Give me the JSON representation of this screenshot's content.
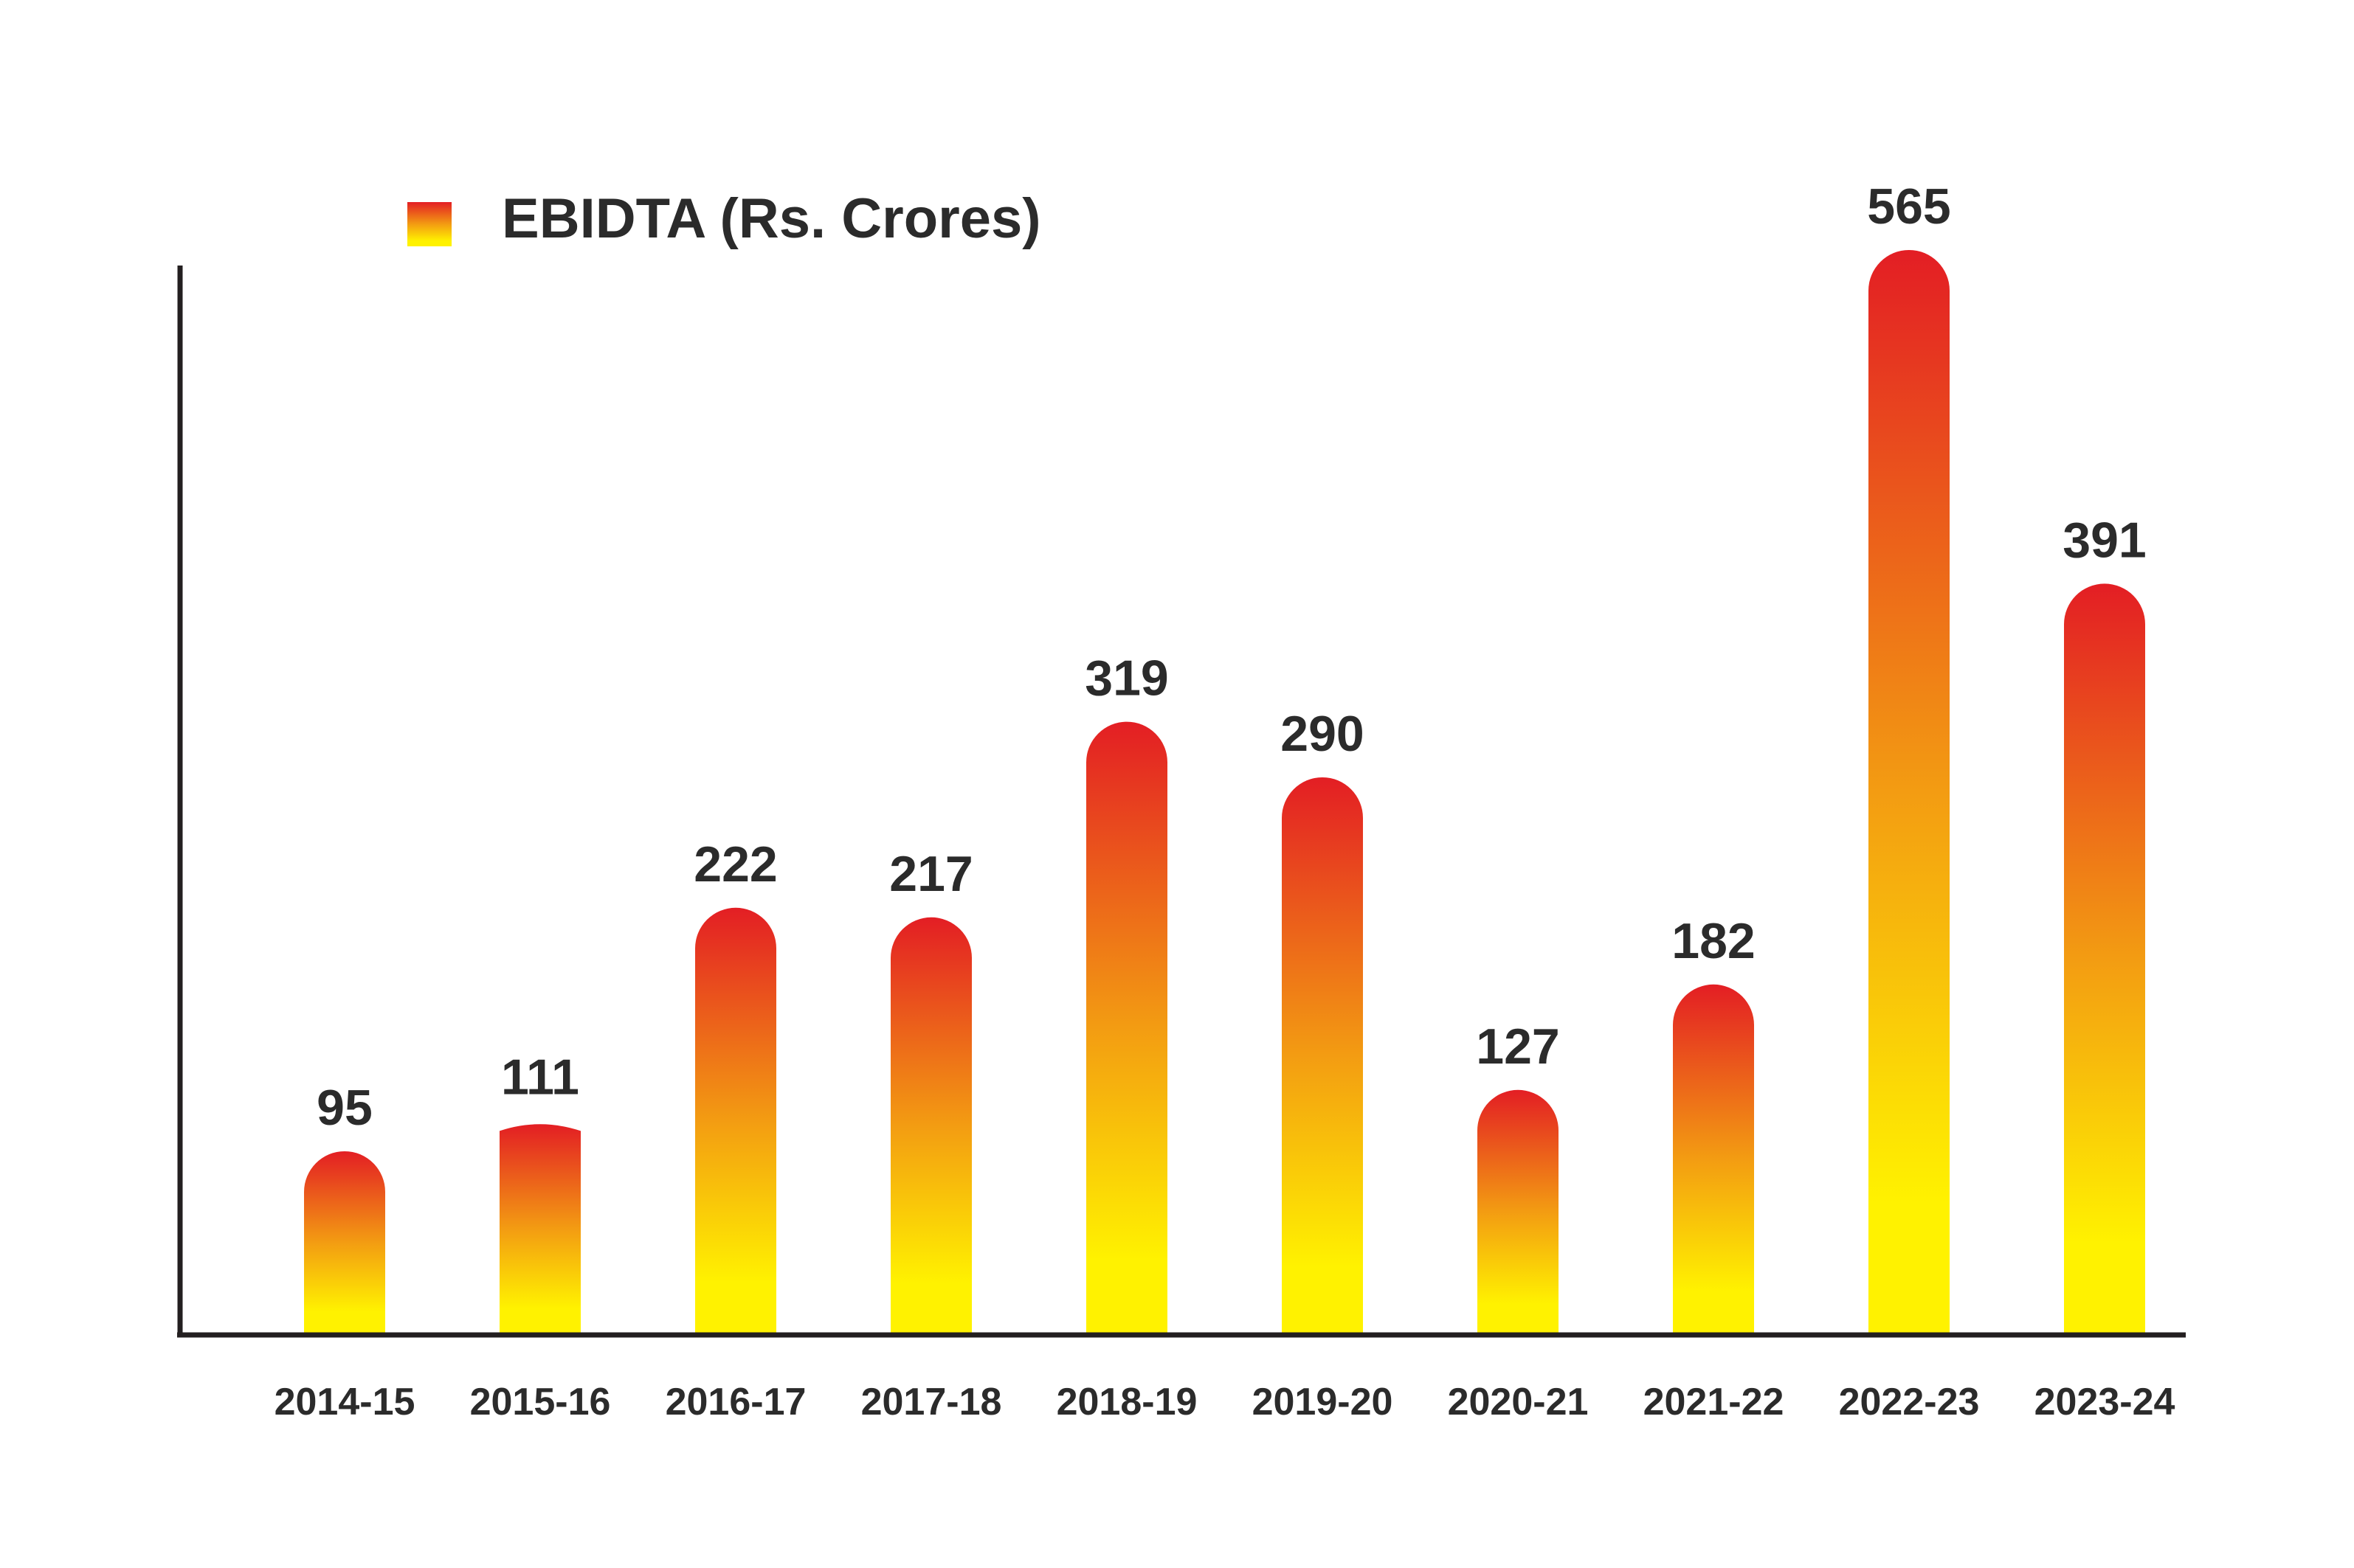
{
  "chart_data": {
    "type": "bar",
    "categories": [
      "2014-15",
      "2015-16",
      "2016-17",
      "2017-18",
      "2018-19",
      "2019-20",
      "2020-21",
      "2021-22",
      "2022-23",
      "2023-24"
    ],
    "series": [
      {
        "name": "EBIDTA (Rs. Crores)",
        "values": [
          95,
          111,
          222,
          217,
          319,
          290,
          127,
          182,
          565,
          391
        ]
      }
    ],
    "title": "",
    "xlabel": "",
    "ylabel": "",
    "ylim": [
      0,
      600
    ],
    "grid": false,
    "legend_position": "top-left",
    "data_labels": true,
    "colors": {
      "bar_top": "#e31e24",
      "bar_mid": "#f39c12",
      "bar_bottom": "#fff200",
      "axis": "#231f20",
      "text": "#2b2b2b"
    }
  }
}
